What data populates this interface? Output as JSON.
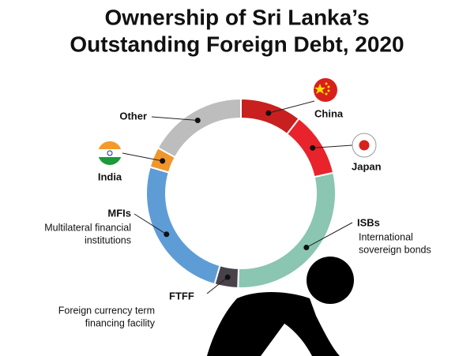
{
  "chart_data": {
    "type": "donut",
    "title": [
      "Ownership of Sri Lanka’s",
      "Outstanding Foreign Debt, 2020"
    ],
    "categories": [
      "China",
      "Japan",
      "ISBs",
      "FTFF",
      "MFIs",
      "India",
      "Other"
    ],
    "descriptions": [
      null,
      null,
      [
        "International",
        "sovereign bonds"
      ],
      [
        "Foreign currency term",
        "financing facility"
      ],
      [
        "Multilateral financial",
        "institutions"
      ],
      null,
      null
    ],
    "values": [
      10.5,
      11,
      29,
      4,
      25,
      3.5,
      17
    ],
    "colors": [
      "#c8201e",
      "#e8232b",
      "#8ac6b1",
      "#48424a",
      "#5e9cd6",
      "#f0962a",
      "#bdbdbd"
    ]
  }
}
